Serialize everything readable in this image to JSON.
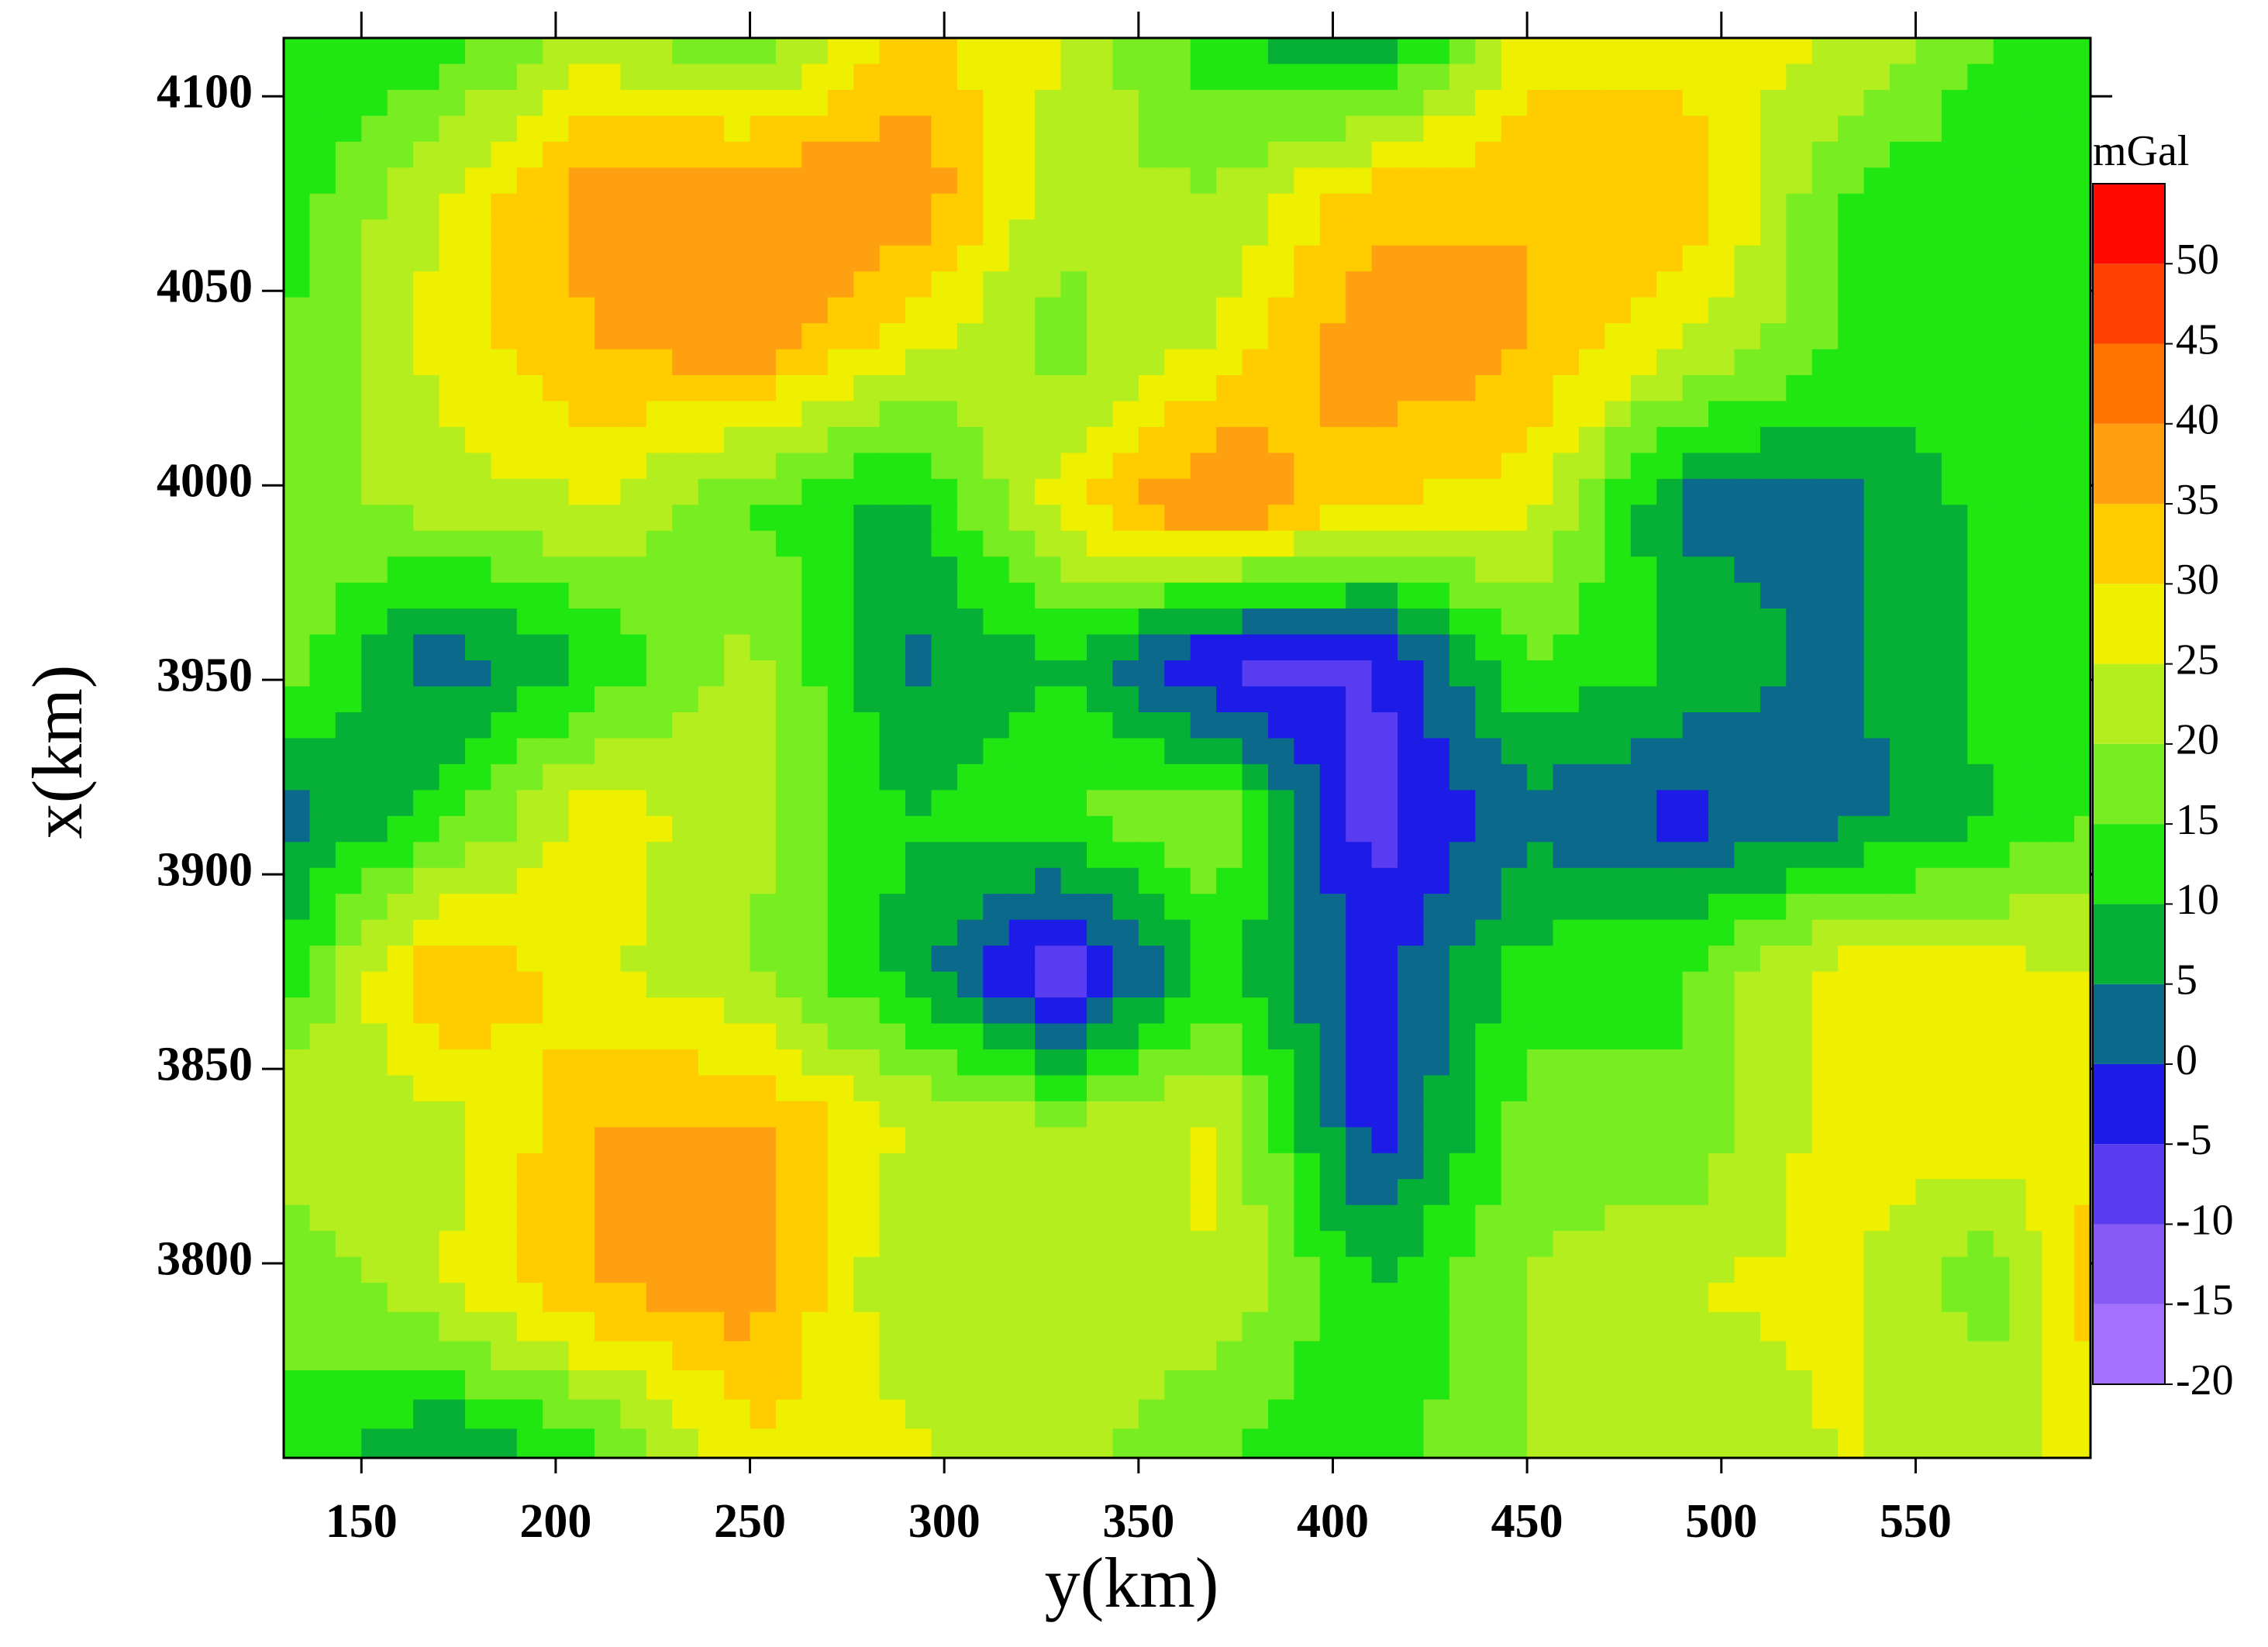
{
  "chart_data": {
    "type": "contour",
    "xlabel": "y(km)",
    "ylabel": "x(km)",
    "x": [
      130,
      170,
      210,
      250,
      290,
      330,
      370,
      410,
      450,
      490,
      530,
      570,
      595
    ],
    "y": [
      4115,
      4075,
      4035,
      3995,
      3955,
      3915,
      3875,
      3835,
      3795,
      3750
    ],
    "z": [
      [
        10,
        12,
        22,
        15,
        32,
        25,
        12,
        3,
        27,
        27,
        25,
        15,
        12
      ],
      [
        12,
        25,
        38,
        40,
        40,
        22,
        20,
        33,
        35,
        35,
        15,
        10,
        15
      ],
      [
        15,
        27,
        35,
        38,
        27,
        18,
        26,
        40,
        35,
        25,
        15,
        13,
        15
      ],
      [
        18,
        22,
        25,
        15,
        8,
        28,
        42,
        30,
        28,
        3,
        3,
        12,
        12
      ],
      [
        18,
        2,
        10,
        22,
        4,
        10,
        -7,
        -6,
        15,
        10,
        3,
        12,
        15
      ],
      [
        3,
        12,
        28,
        22,
        10,
        15,
        20,
        -8,
        3,
        -2,
        3,
        10,
        15
      ],
      [
        12,
        36,
        26,
        20,
        8,
        -10,
        12,
        -3,
        12,
        15,
        28,
        27,
        25
      ],
      [
        25,
        22,
        35,
        36,
        25,
        22,
        26,
        -3,
        18,
        15,
        28,
        28,
        26
      ],
      [
        15,
        25,
        36,
        38,
        20,
        22,
        25,
        10,
        20,
        25,
        26,
        16,
        35
      ],
      [
        15,
        4,
        12,
        28,
        26,
        22,
        15,
        12,
        20,
        22,
        25,
        25,
        25
      ]
    ],
    "xlim": [
      130,
      595
    ],
    "ylim": [
      3750,
      4115
    ],
    "xticks": [
      150,
      200,
      250,
      300,
      350,
      400,
      450,
      500,
      550
    ],
    "yticks": [
      3800,
      3850,
      3900,
      3950,
      4000,
      4050,
      4100
    ],
    "colorbar": {
      "label": "mGal",
      "levels": [
        -20,
        -15,
        -10,
        -5,
        0,
        5,
        10,
        15,
        20,
        25,
        30,
        35,
        40,
        45,
        50,
        55
      ],
      "colors": [
        "#a470ff",
        "#8658f4",
        "#5a3cf0",
        "#1c1ce6",
        "#0b6a8c",
        "#06b036",
        "#20e612",
        "#78ee22",
        "#b4ee1e",
        "#eef000",
        "#ffcc00",
        "#ffa010",
        "#ff7400",
        "#ff4000",
        "#ff0a00"
      ],
      "ticks": [
        -20,
        -15,
        -10,
        -5,
        0,
        5,
        10,
        15,
        20,
        25,
        30,
        35,
        40,
        45,
        50
      ]
    }
  }
}
